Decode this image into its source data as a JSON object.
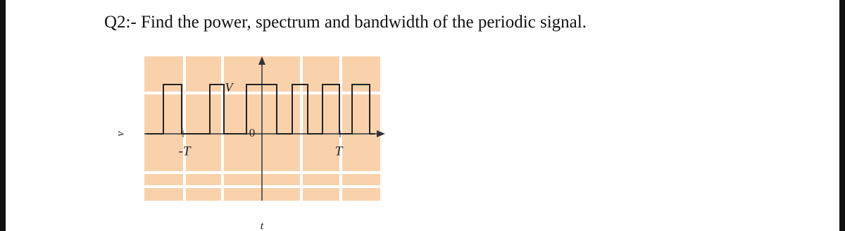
{
  "question": "Q2:- Find the power, spectrum and bandwidth of the periodic signal.",
  "figure": {
    "y_axis_label": "v",
    "x_axis_label": "t",
    "amplitude_label": "V",
    "origin_label": "0",
    "tick_labels": [
      "-T",
      "T"
    ]
  }
}
